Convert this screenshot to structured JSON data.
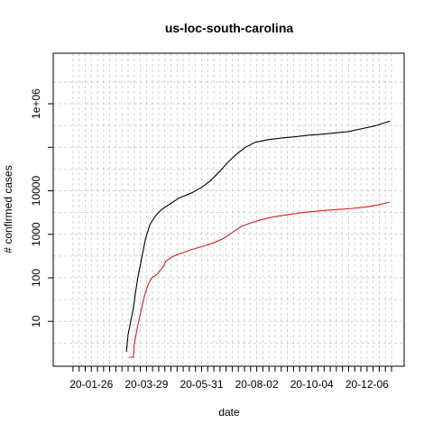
{
  "chart_data": {
    "type": "line",
    "title": "us-loc-south-carolina",
    "xlabel": "date",
    "ylabel": "# confirmed cases",
    "y_scale": "log",
    "grid": true,
    "legend": "none",
    "xlim": [
      "2020-01-01",
      "2021-01-03"
    ],
    "ylim": [
      1.5,
      9000000
    ],
    "x_tick_labels": [
      "20-01-26",
      "20-03-29",
      "20-05-31",
      "20-08-02",
      "20-10-04",
      "20-12-06"
    ],
    "x_tick_dates": [
      "2020-01-26",
      "2020-03-29",
      "2020-05-31",
      "2020-08-02",
      "2020-10-04",
      "2020-12-06"
    ],
    "y_tick_labels": [
      "10",
      "100",
      "1000",
      "10000",
      "1e+06"
    ],
    "y_tick_values": [
      10,
      100,
      1000,
      10000,
      1000000
    ],
    "series": [
      {
        "color": "#000000",
        "points": [
          [
            "2020-03-06",
            2
          ],
          [
            "2020-03-08",
            5
          ],
          [
            "2020-03-11",
            10
          ],
          [
            "2020-03-14",
            20
          ],
          [
            "2020-03-16",
            40
          ],
          [
            "2020-03-19",
            100
          ],
          [
            "2020-03-22",
            200
          ],
          [
            "2020-03-25",
            400
          ],
          [
            "2020-03-28",
            800
          ],
          [
            "2020-04-02",
            1700
          ],
          [
            "2020-04-08",
            2600
          ],
          [
            "2020-04-15",
            3700
          ],
          [
            "2020-04-25",
            5000
          ],
          [
            "2020-05-05",
            6800
          ],
          [
            "2020-05-20",
            9000
          ],
          [
            "2020-05-31",
            12000
          ],
          [
            "2020-06-10",
            17000
          ],
          [
            "2020-06-20",
            27000
          ],
          [
            "2020-06-30",
            45000
          ],
          [
            "2020-07-10",
            70000
          ],
          [
            "2020-07-20",
            100000
          ],
          [
            "2020-07-31",
            130000
          ],
          [
            "2020-08-15",
            150000
          ],
          [
            "2020-09-01",
            165000
          ],
          [
            "2020-09-15",
            175000
          ],
          [
            "2020-10-01",
            190000
          ],
          [
            "2020-10-15",
            200000
          ],
          [
            "2020-11-01",
            215000
          ],
          [
            "2020-11-15",
            230000
          ],
          [
            "2020-12-01",
            270000
          ],
          [
            "2020-12-15",
            310000
          ],
          [
            "2021-01-01",
            400000
          ]
        ]
      },
      {
        "color": "#e31a1c",
        "points": [
          [
            "2020-03-09",
            1
          ],
          [
            "2020-03-14",
            1
          ],
          [
            "2020-03-15",
            3
          ],
          [
            "2020-03-19",
            8
          ],
          [
            "2020-03-23",
            18
          ],
          [
            "2020-03-27",
            40
          ],
          [
            "2020-03-31",
            70
          ],
          [
            "2020-04-04",
            100
          ],
          [
            "2020-04-10",
            120
          ],
          [
            "2020-04-17",
            180
          ],
          [
            "2020-04-20",
            240
          ],
          [
            "2020-04-28",
            310
          ],
          [
            "2020-05-10",
            380
          ],
          [
            "2020-05-20",
            450
          ],
          [
            "2020-05-31",
            520
          ],
          [
            "2020-06-15",
            650
          ],
          [
            "2020-06-25",
            800
          ],
          [
            "2020-07-05",
            1100
          ],
          [
            "2020-07-15",
            1500
          ],
          [
            "2020-07-25",
            1800
          ],
          [
            "2020-08-05",
            2100
          ],
          [
            "2020-08-20",
            2500
          ],
          [
            "2020-09-05",
            2800
          ],
          [
            "2020-09-20",
            3100
          ],
          [
            "2020-10-05",
            3350
          ],
          [
            "2020-10-20",
            3550
          ],
          [
            "2020-11-05",
            3750
          ],
          [
            "2020-11-20",
            3950
          ],
          [
            "2020-12-05",
            4250
          ],
          [
            "2020-12-20",
            4800
          ],
          [
            "2021-01-01",
            5500
          ]
        ]
      }
    ]
  }
}
